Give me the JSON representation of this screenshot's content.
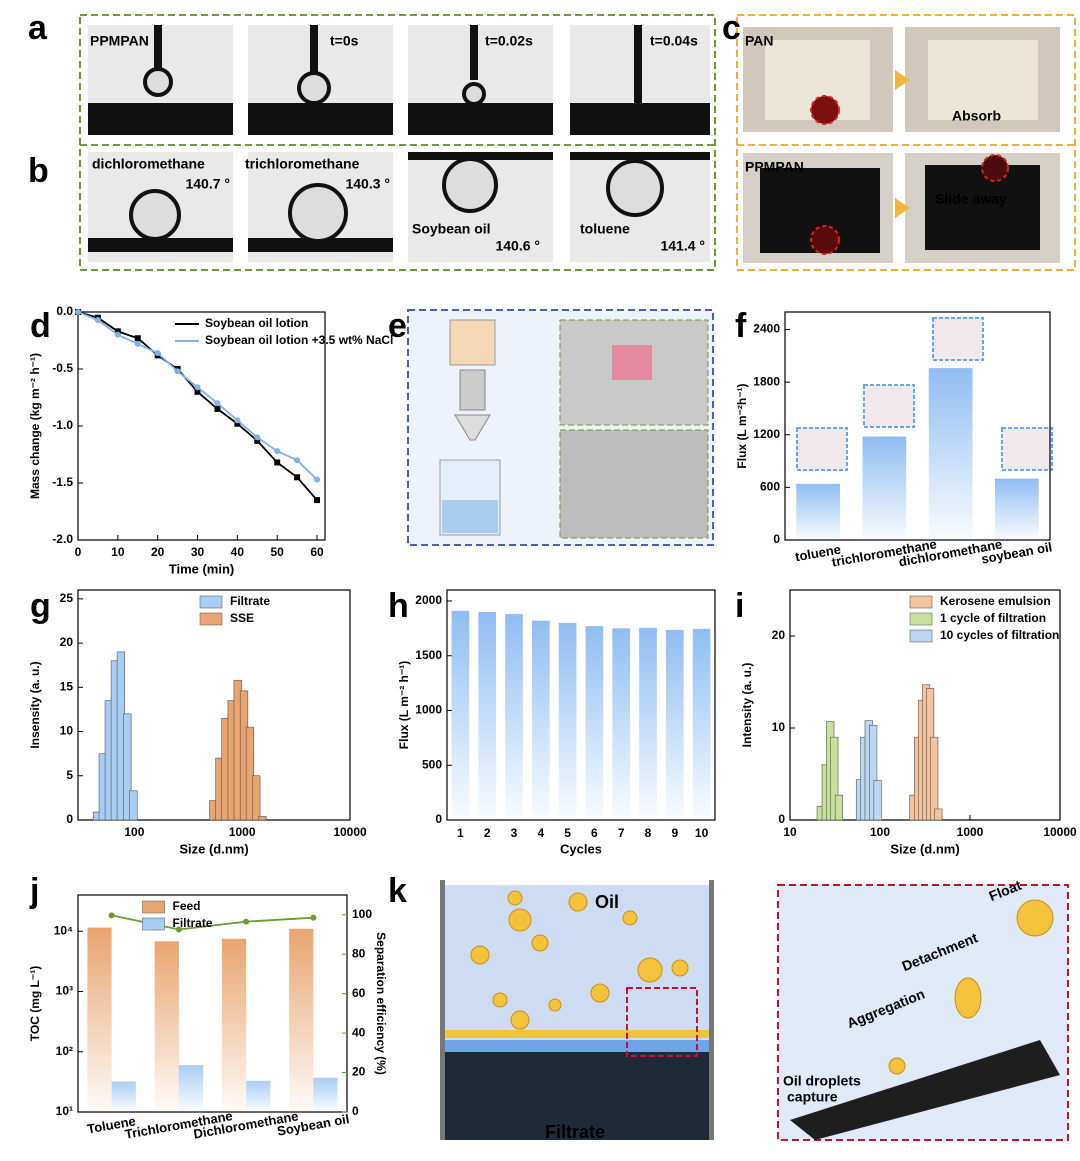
{
  "panel_letters": [
    "a",
    "b",
    "c",
    "d",
    "e",
    "f",
    "g",
    "h",
    "i",
    "j",
    "k"
  ],
  "photos": {
    "a": {
      "labels": [
        "PPMPAN",
        "t=0s",
        "t=0.02s",
        "t=0.04s"
      ]
    },
    "b": {
      "labels": [
        "dichloromethane",
        "140.7 °",
        "trichloromethane",
        "140.3 °",
        "Soybean oil",
        "140.6 °",
        "toluene",
        "141.4 °"
      ]
    },
    "c": {
      "labels": [
        "PAN",
        "Absorb",
        "PPMPAN",
        "Slide away"
      ]
    },
    "k": {
      "labels": [
        "Oil",
        "Filtrate",
        "Float",
        "Detachment",
        "Aggregation",
        "Oil droplets",
        "capture"
      ]
    }
  },
  "chart_data": [
    {
      "type": "line",
      "xlabel": "Time (min)",
      "ylabel": "Mass change (kg m⁻² h⁻¹)",
      "x": [
        0,
        5,
        10,
        15,
        20,
        25,
        30,
        35,
        40,
        45,
        50,
        55,
        60
      ],
      "series": [
        {
          "name": "Soybean oil lotion",
          "color": "#000000",
          "marker": "square",
          "values": [
            0,
            -0.05,
            -0.17,
            -0.23,
            -0.38,
            -0.5,
            -0.7,
            -0.85,
            -0.98,
            -1.13,
            -1.32,
            -1.45,
            -1.65
          ]
        },
        {
          "name": "Soybean oil lotion +3.5 wt% NaCl",
          "color": "#7fb2ea",
          "marker": "circle",
          "values": [
            0,
            -0.07,
            -0.2,
            -0.28,
            -0.36,
            -0.52,
            -0.66,
            -0.8,
            -0.95,
            -1.1,
            -1.22,
            -1.3,
            -1.47
          ]
        }
      ],
      "xlim": [
        0,
        62
      ],
      "xticks": [
        0,
        10,
        20,
        30,
        40,
        50,
        60
      ],
      "ylim": [
        -2,
        0
      ],
      "yticks": [
        {
          "value": -2,
          "label": "-2.0"
        },
        -1.5,
        {
          "value": -1,
          "label": "-1.0"
        },
        -0.5,
        {
          "value": 0,
          "label": "0.0"
        }
      ],
      "legend": "upper right"
    },
    {
      "type": "bar",
      "ylabel": "Flux (L m⁻²h⁻¹)",
      "categories": [
        "toluene",
        "trichloromethane",
        "dichloromethane",
        "soybean oil"
      ],
      "values": [
        640,
        1180,
        1960,
        700
      ],
      "color": "#8fbdf2",
      "ylim": [
        0,
        2600
      ],
      "yticks": [
        0,
        600,
        1200,
        1800,
        2400
      ],
      "rotate_labels": true
    },
    {
      "type": "bar",
      "xlabel": "Size (d.nm)",
      "ylabel": "Insensity (a. u.)",
      "series": [
        {
          "name": "Filtrate",
          "color": "#a8cdf5",
          "x": [
            45,
            51,
            58,
            66,
            75,
            86,
            98
          ],
          "values": [
            0.9,
            7.5,
            13.5,
            18,
            19,
            12,
            3.3
          ]
        },
        {
          "name": "SSE",
          "color": "#e9a46f",
          "x": [
            540,
            615,
            700,
            800,
            910,
            1040,
            1180,
            1350,
            1540
          ],
          "values": [
            2.2,
            7,
            11.5,
            13.5,
            15.8,
            14.6,
            10.5,
            5,
            0.4
          ]
        }
      ],
      "xlog": true,
      "xlim": [
        30,
        10000
      ],
      "xticks": [
        100,
        1000,
        10000
      ],
      "ylim": [
        0,
        26
      ],
      "yticks": [
        0,
        5,
        10,
        15,
        20,
        25
      ],
      "legend": "upper right"
    },
    {
      "type": "bar",
      "xlabel": "Cycles",
      "ylabel": "Flux (L m⁻² h⁻¹)",
      "categories": [
        "1",
        "2",
        "3",
        "4",
        "5",
        "6",
        "7",
        "8",
        "9",
        "10"
      ],
      "values": [
        1910,
        1900,
        1880,
        1820,
        1800,
        1770,
        1750,
        1755,
        1735,
        1745
      ],
      "color": "#8fbdf2",
      "ylim": [
        0,
        2100
      ],
      "yticks": [
        0,
        500,
        1000,
        1500,
        2000
      ]
    },
    {
      "type": "bar",
      "xlabel": "Size (d.nm)",
      "ylabel": "Intensity (a. u.)",
      "series": [
        {
          "name": "Kerosene emulsion",
          "color": "#f4c29d",
          "x": [
            235,
            265,
            295,
            325,
            360,
            400,
            445
          ],
          "values": [
            2.7,
            9,
            13,
            14.7,
            14.3,
            9,
            1.2
          ]
        },
        {
          "name": "1 cycle of filtration",
          "color": "#c7e09a",
          "x": [
            22,
            25,
            28,
            31,
            35
          ],
          "values": [
            1.5,
            6,
            10.7,
            9,
            2.7
          ]
        },
        {
          "name": "10 cycles of filtration",
          "color": "#b9d6f3",
          "x": [
            60,
            67,
            75,
            84,
            94
          ],
          "values": [
            4.4,
            9,
            10.8,
            10.3,
            4.3
          ]
        }
      ],
      "xlog": true,
      "xlim": [
        10,
        10000
      ],
      "xticks": [
        10,
        100,
        1000,
        10000
      ],
      "ylim": [
        0,
        25
      ],
      "yticks": [
        0,
        10,
        20
      ],
      "legend": "upper right"
    },
    {
      "type": "bar",
      "ylabel": "TOC (mg L⁻¹)",
      "y2label": "Separation efficiency (%)",
      "categories": [
        "Toluene",
        "Trichloromethane",
        "Dichloromethane",
        "Soybean oil"
      ],
      "series": [
        {
          "name": "Feed",
          "color": "#e9a46f",
          "values": [
            11500,
            6800,
            7500,
            11000
          ]
        },
        {
          "name": "Filtrate",
          "color": "#a8cdf5",
          "values": [
            32,
            60,
            33,
            37
          ]
        },
        {
          "type": "line",
          "axis": "y2",
          "color": "#6f9a2e",
          "values": [
            99.7,
            92.5,
            96.5,
            98.5
          ]
        }
      ],
      "ylog": true,
      "ylim": [
        10,
        40000
      ],
      "yticks": [
        {
          "value": 10,
          "label": "10¹"
        },
        {
          "value": 100,
          "label": "10²"
        },
        {
          "value": 1000,
          "label": "10³"
        },
        {
          "value": 10000,
          "label": "10⁴"
        }
      ],
      "y2lim": [
        0,
        110
      ],
      "y2ticks": [
        0,
        20,
        40,
        60,
        80,
        100
      ],
      "legend": "upper center",
      "rotate_labels": true
    }
  ]
}
